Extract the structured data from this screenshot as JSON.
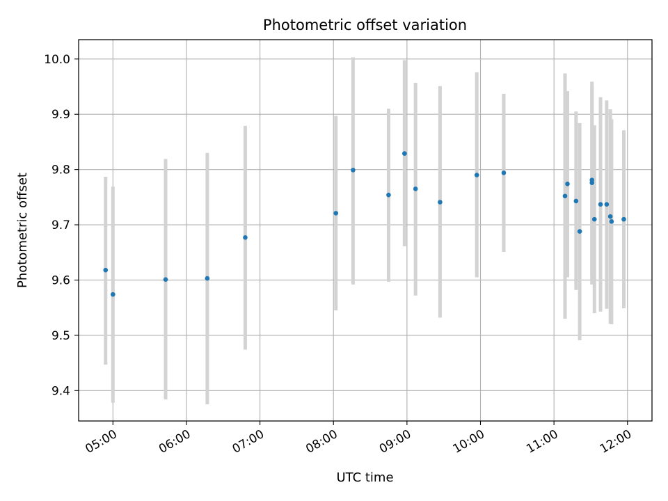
{
  "chart_data": {
    "type": "scatter",
    "title": "Photometric offset variation",
    "xlabel": "UTC time",
    "ylabel": "Photometric offset",
    "x_tick_labels": [
      "05:00",
      "06:00",
      "07:00",
      "08:00",
      "09:00",
      "10:00",
      "11:00",
      "12:00"
    ],
    "x_tick_times": [
      "05:00",
      "06:00",
      "07:00",
      "08:00",
      "09:00",
      "10:00",
      "11:00",
      "12:00"
    ],
    "xlim": [
      "04:32",
      "12:20"
    ],
    "y_ticks": [
      9.4,
      9.5,
      9.6,
      9.7,
      9.8,
      9.9,
      10.0
    ],
    "y_tick_labels": [
      "9.4",
      "9.5",
      "9.6",
      "9.7",
      "9.8",
      "9.9",
      "10.0"
    ],
    "ylim": [
      9.345,
      10.035
    ],
    "grid": true,
    "point_color": "#1f77b4",
    "errorbar_color": "#d3d3d3",
    "points": [
      {
        "time": "04:54",
        "y": 9.618,
        "low": 9.447,
        "high": 9.787
      },
      {
        "time": "05:00",
        "y": 9.574,
        "low": 9.378,
        "high": 9.769
      },
      {
        "time": "05:43",
        "y": 9.601,
        "low": 9.384,
        "high": 9.819
      },
      {
        "time": "06:17",
        "y": 9.603,
        "low": 9.375,
        "high": 9.83
      },
      {
        "time": "06:48",
        "y": 9.677,
        "low": 9.474,
        "high": 9.879
      },
      {
        "time": "08:02",
        "y": 9.721,
        "low": 9.545,
        "high": 9.897
      },
      {
        "time": "08:16",
        "y": 9.799,
        "low": 9.592,
        "high": 10.003
      },
      {
        "time": "08:45",
        "y": 9.754,
        "low": 9.597,
        "high": 9.91
      },
      {
        "time": "08:58",
        "y": 9.829,
        "low": 9.661,
        "high": 9.998
      },
      {
        "time": "09:07",
        "y": 9.765,
        "low": 9.572,
        "high": 9.957
      },
      {
        "time": "09:27",
        "y": 9.741,
        "low": 9.532,
        "high": 9.951
      },
      {
        "time": "09:57",
        "y": 9.79,
        "low": 9.605,
        "high": 9.976
      },
      {
        "time": "10:19",
        "y": 9.794,
        "low": 9.651,
        "high": 9.937
      },
      {
        "time": "11:09",
        "y": 9.752,
        "low": 9.53,
        "high": 9.974
      },
      {
        "time": "11:11",
        "y": 9.774,
        "low": 9.605,
        "high": 9.942
      },
      {
        "time": "11:18",
        "y": 9.743,
        "low": 9.582,
        "high": 9.905
      },
      {
        "time": "11:21",
        "y": 9.688,
        "low": 9.491,
        "high": 9.884
      },
      {
        "time": "11:31",
        "y": 9.776,
        "low": 9.592,
        "high": 9.959
      },
      {
        "time": "11:31",
        "y": 9.781,
        "low": 9.61,
        "high": 9.952
      },
      {
        "time": "11:33",
        "y": 9.71,
        "low": 9.54,
        "high": 9.88
      },
      {
        "time": "11:38",
        "y": 9.737,
        "low": 9.543,
        "high": 9.931
      },
      {
        "time": "11:43",
        "y": 9.737,
        "low": 9.548,
        "high": 9.925
      },
      {
        "time": "11:46",
        "y": 9.715,
        "low": 9.521,
        "high": 9.909
      },
      {
        "time": "11:47",
        "y": 9.706,
        "low": 9.52,
        "high": 9.891
      },
      {
        "time": "11:57",
        "y": 9.71,
        "low": 9.549,
        "high": 9.871
      }
    ]
  }
}
